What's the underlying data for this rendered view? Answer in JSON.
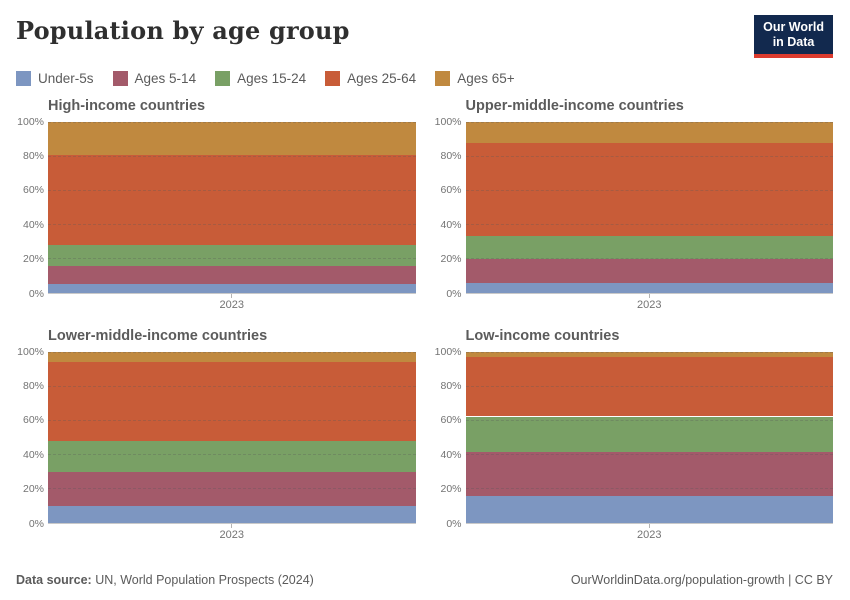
{
  "header": {
    "title": "Population by age group",
    "logo": {
      "line1": "Our World",
      "line2": "in Data",
      "bg_color": "#12294e",
      "accent_color": "#dc3b2e"
    }
  },
  "footer": {
    "source_label": "Data source:",
    "source_text": " UN, World Population Prospects (2024)",
    "credit": "OurWorldinData.org/population-growth | CC BY"
  },
  "chart_data": {
    "type": "area",
    "stacked": true,
    "unit": "%",
    "ylim": [
      0,
      100
    ],
    "y_ticks": [
      "0%",
      "20%",
      "40%",
      "60%",
      "80%",
      "100%"
    ],
    "x_tick": "2023",
    "grid": "dashed horizontal at 20% intervals",
    "legend_position": "top",
    "series": [
      {
        "name": "Under-5s",
        "color": "#7d96c1"
      },
      {
        "name": "Ages 5-14",
        "color": "#a35a6a"
      },
      {
        "name": "Ages 15-24",
        "color": "#79a065"
      },
      {
        "name": "Ages 25-64",
        "color": "#c85c38"
      },
      {
        "name": "Ages 65+",
        "color": "#c0893f"
      }
    ],
    "panels": [
      {
        "title": "High-income countries",
        "values": [
          5,
          10.5,
          12,
          53,
          19.5
        ]
      },
      {
        "title": "Upper-middle-income countries",
        "values": [
          5.5,
          14,
          13.5,
          54.5,
          12.5
        ]
      },
      {
        "title": "Lower-middle-income countries",
        "values": [
          9.5,
          20,
          18,
          46.5,
          6
        ]
      },
      {
        "title": "Low-income countries",
        "values": [
          15.5,
          26,
          20.5,
          35,
          3
        ]
      }
    ]
  }
}
